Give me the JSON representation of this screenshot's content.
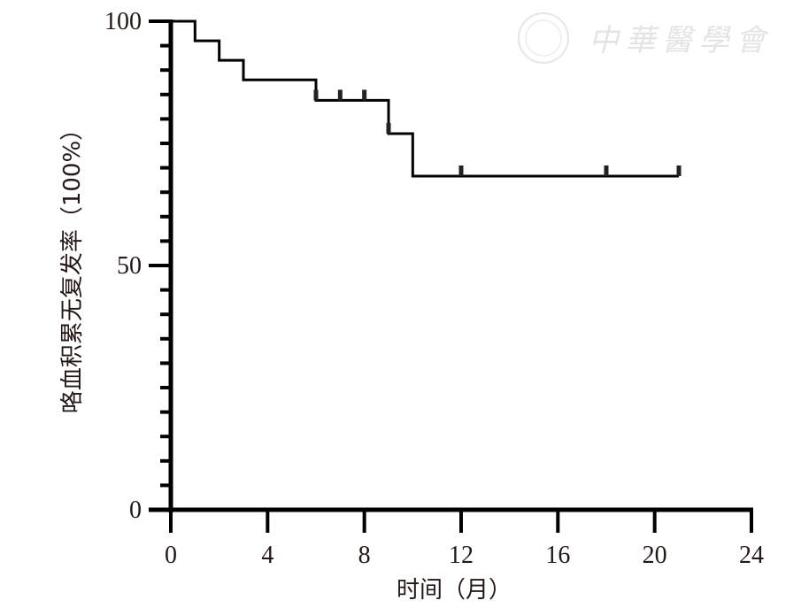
{
  "chart_data": {
    "type": "line",
    "subtype": "kaplan-meier step",
    "title": "",
    "xlabel": "时间（月）",
    "ylabel": "咯血积累无复发率（100%）",
    "xlim": [
      0,
      24
    ],
    "ylim": [
      0,
      100
    ],
    "xticks": [
      0,
      4,
      8,
      12,
      16,
      20,
      24
    ],
    "yticks": [
      0,
      50,
      100
    ],
    "y_minor_step": 5,
    "grid": false,
    "legend": "none",
    "line_color": "#000000",
    "series": [
      {
        "steps": [
          {
            "x": 0,
            "y": 100
          },
          {
            "x": 1,
            "y": 96
          },
          {
            "x": 2,
            "y": 92
          },
          {
            "x": 3,
            "y": 88
          },
          {
            "x": 6,
            "y": 83.8
          },
          {
            "x": 9,
            "y": 77.0
          },
          {
            "x": 10,
            "y": 68.3
          }
        ],
        "end_x": 21,
        "censored": [
          {
            "x": 6,
            "y": 83.8
          },
          {
            "x": 7,
            "y": 83.8
          },
          {
            "x": 8,
            "y": 83.8
          },
          {
            "x": 9,
            "y": 77.0
          },
          {
            "x": 12,
            "y": 68.3
          },
          {
            "x": 18,
            "y": 68.3
          },
          {
            "x": 21,
            "y": 68.3
          }
        ]
      }
    ]
  },
  "watermark": {
    "text": "中華醫學會",
    "color": "#e4e4e4"
  }
}
